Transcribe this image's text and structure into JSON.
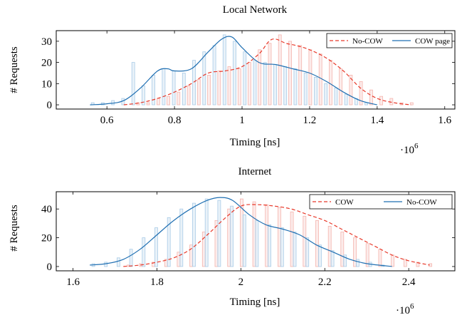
{
  "chart_data": [
    {
      "type": "line",
      "title": "Local Network",
      "xlabel": "Timing [ns]",
      "ylabel": "# Requests",
      "x_multiplier_label": "·10",
      "x_multiplier_exp": "6",
      "xlim": [
        0.45,
        1.63
      ],
      "ylim": [
        -2,
        35
      ],
      "xticks": [
        0.6,
        0.8,
        1.0,
        1.2,
        1.4,
        1.6
      ],
      "xtick_labels": [
        "0.6",
        "0.8",
        "1",
        "1.2",
        "1.4",
        "1.6"
      ],
      "yticks": [
        0,
        10,
        20,
        30
      ],
      "ytick_labels": [
        "0",
        "10",
        "20",
        "30"
      ],
      "grid": false,
      "legend_position": "top-right",
      "series": [
        {
          "name": "No-COW",
          "style": "dashed",
          "color": "#e8392a",
          "x": [
            0.65,
            0.7,
            0.75,
            0.8,
            0.85,
            0.9,
            0.95,
            1.0,
            1.05,
            1.08,
            1.1,
            1.13,
            1.16,
            1.2,
            1.25,
            1.3,
            1.35,
            1.4,
            1.45,
            1.5
          ],
          "y": [
            0,
            1,
            3,
            6,
            10,
            15,
            16,
            18,
            24,
            30,
            31,
            29,
            28,
            26,
            22,
            16,
            8,
            3,
            1,
            0
          ],
          "hist_x": [
            0.69,
            0.72,
            0.75,
            0.78,
            0.81,
            0.84,
            0.87,
            0.9,
            0.93,
            0.96,
            0.99,
            1.02,
            1.05,
            1.08,
            1.11,
            1.14,
            1.17,
            1.2,
            1.23,
            1.26,
            1.29,
            1.32,
            1.35,
            1.38,
            1.41,
            1.44,
            1.47,
            1.5
          ],
          "hist_y": [
            1,
            1,
            3,
            4,
            6,
            9,
            12,
            14,
            16,
            18,
            17,
            20,
            26,
            29,
            33,
            30,
            28,
            26,
            24,
            21,
            17,
            14,
            11,
            7,
            4,
            3,
            1,
            1
          ]
        },
        {
          "name": "COW page",
          "style": "solid",
          "color": "#1f6fb2",
          "x": [
            0.55,
            0.6,
            0.65,
            0.7,
            0.75,
            0.78,
            0.8,
            0.85,
            0.9,
            0.94,
            0.97,
            1.0,
            1.05,
            1.1,
            1.15,
            1.2,
            1.25,
            1.3,
            1.35,
            1.4
          ],
          "y": [
            0,
            0.5,
            2,
            8,
            16,
            17,
            16,
            17,
            25,
            31,
            32,
            27,
            20,
            19,
            17,
            15,
            11,
            6,
            2,
            0
          ],
          "hist_x": [
            0.56,
            0.59,
            0.62,
            0.65,
            0.68,
            0.71,
            0.74,
            0.77,
            0.8,
            0.83,
            0.86,
            0.89,
            0.92,
            0.95,
            0.98,
            1.01,
            1.04,
            1.07,
            1.1,
            1.13,
            1.16,
            1.19,
            1.22,
            1.25,
            1.28,
            1.31,
            1.34,
            1.37
          ],
          "hist_y": [
            1,
            1,
            2,
            3,
            20,
            9,
            14,
            17,
            16,
            15,
            21,
            25,
            28,
            33,
            30,
            25,
            21,
            20,
            19,
            18,
            17,
            15,
            13,
            10,
            8,
            5,
            3,
            1
          ]
        }
      ]
    },
    {
      "type": "line",
      "title": "Internet",
      "xlabel": "Timing [ns]",
      "ylabel": "# Requests",
      "x_multiplier_label": "·10",
      "x_multiplier_exp": "6",
      "xlim": [
        1.56,
        2.51
      ],
      "ylim": [
        -3,
        52
      ],
      "xticks": [
        1.6,
        1.8,
        2.0,
        2.2,
        2.4
      ],
      "xtick_labels": [
        "1.6",
        "1.8",
        "2",
        "2.2",
        "2.4"
      ],
      "yticks": [
        0,
        20,
        40
      ],
      "ytick_labels": [
        "0",
        "20",
        "40"
      ],
      "grid": false,
      "legend_position": "top-right",
      "series": [
        {
          "name": "COW",
          "style": "dashed",
          "color": "#e8392a",
          "x": [
            1.72,
            1.76,
            1.8,
            1.84,
            1.88,
            1.92,
            1.96,
            2.0,
            2.04,
            2.08,
            2.12,
            2.16,
            2.2,
            2.24,
            2.28,
            2.32,
            2.36,
            2.4,
            2.45
          ],
          "y": [
            0,
            1,
            3,
            6,
            12,
            22,
            33,
            42,
            43,
            42,
            40,
            36,
            32,
            26,
            20,
            14,
            8,
            4,
            1
          ],
          "hist_x": [
            1.73,
            1.76,
            1.79,
            1.82,
            1.85,
            1.88,
            1.91,
            1.94,
            1.97,
            2.0,
            2.03,
            2.06,
            2.09,
            2.12,
            2.15,
            2.18,
            2.21,
            2.24,
            2.27,
            2.3,
            2.33,
            2.36,
            2.39,
            2.42,
            2.45
          ],
          "hist_y": [
            1,
            2,
            3,
            5,
            10,
            15,
            24,
            32,
            40,
            47,
            45,
            43,
            41,
            38,
            35,
            32,
            28,
            24,
            20,
            16,
            12,
            8,
            5,
            3,
            2
          ]
        },
        {
          "name": "No-COW",
          "style": "solid",
          "color": "#1f6fb2",
          "x": [
            1.64,
            1.68,
            1.72,
            1.76,
            1.8,
            1.84,
            1.88,
            1.92,
            1.95,
            1.98,
            2.02,
            2.06,
            2.1,
            2.14,
            2.18,
            2.22,
            2.26,
            2.3,
            2.36
          ],
          "y": [
            1,
            2,
            5,
            12,
            22,
            32,
            40,
            46,
            48,
            46,
            36,
            29,
            26,
            22,
            15,
            10,
            5,
            2,
            0
          ],
          "hist_x": [
            1.65,
            1.68,
            1.71,
            1.74,
            1.77,
            1.8,
            1.83,
            1.86,
            1.89,
            1.92,
            1.95,
            1.98,
            2.01,
            2.04,
            2.07,
            2.1,
            2.13,
            2.16,
            2.19,
            2.22,
            2.25,
            2.28,
            2.31,
            2.34
          ],
          "hist_y": [
            2,
            3,
            6,
            12,
            20,
            27,
            34,
            40,
            44,
            47,
            46,
            42,
            36,
            32,
            29,
            27,
            24,
            20,
            15,
            11,
            8,
            5,
            3,
            1
          ]
        }
      ]
    }
  ]
}
